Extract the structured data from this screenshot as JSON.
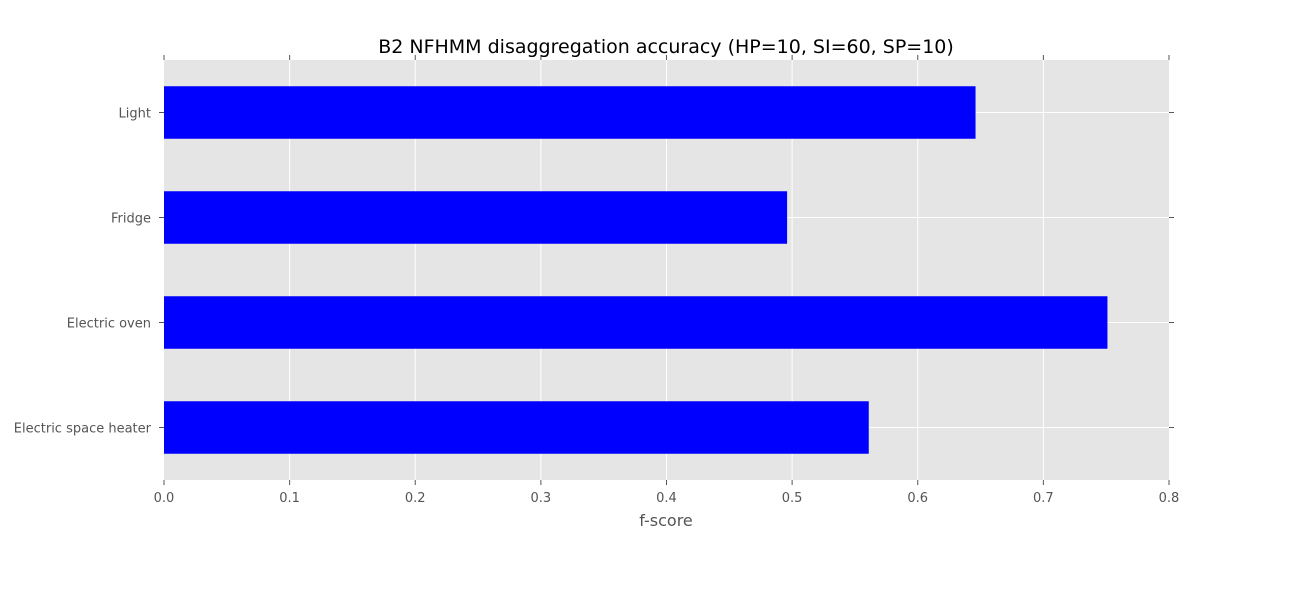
{
  "chart_data": {
    "type": "bar",
    "orientation": "horizontal",
    "title": "B2 NFHMM disaggregation accuracy (HP=10, SI=60, SP=10)",
    "xlabel": "f-score",
    "ylabel": "",
    "categories": [
      "Light",
      "Fridge",
      "Electric oven",
      "Electric space heater"
    ],
    "values": [
      0.646,
      0.496,
      0.751,
      0.561
    ],
    "xlim": [
      0.0,
      0.8
    ],
    "xticks": [
      "0.0",
      "0.1",
      "0.2",
      "0.3",
      "0.4",
      "0.5",
      "0.6",
      "0.7",
      "0.8"
    ],
    "grid": true,
    "legend": "none",
    "colors": {
      "bar": "#0000ff",
      "plot_background": "#e5e5e5",
      "grid": "#ffffff",
      "tick_text": "#555555",
      "title_text": "#000000"
    }
  }
}
